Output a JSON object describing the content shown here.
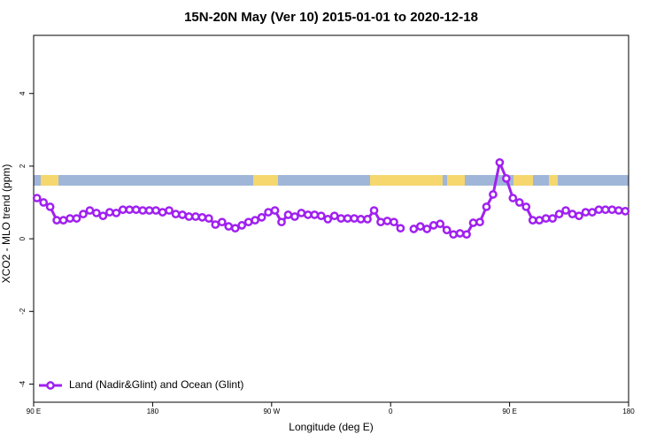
{
  "chart_data": {
    "type": "line",
    "title": "15N-20N May (Ver 10)   2015-01-01 to 2020-12-18",
    "x_label": "Longitude (deg E)",
    "y_label": "XCO2 - MLO trend (ppm)",
    "xlim": [
      90,
      540
    ],
    "xticks": [
      {
        "value": 90,
        "label": "90 E"
      },
      180,
      {
        "value": 270,
        "label": "90 W"
      },
      {
        "value": 360,
        "label": "0"
      },
      {
        "value": 450,
        "label": "90 E"
      },
      {
        "value": 540,
        "label": "180"
      }
    ],
    "ylim": [
      -4.5,
      5.6
    ],
    "yticks": [
      -4,
      -2,
      0,
      2,
      4
    ],
    "legend": "lower left",
    "x": [
      92.5,
      97.5,
      102.5,
      107.5,
      112.5,
      117.5,
      122.5,
      127.5,
      132.5,
      137.5,
      142.5,
      147.5,
      152.5,
      157.5,
      162.5,
      167.5,
      172.5,
      177.5,
      182.5,
      187.5,
      192.5,
      197.5,
      202.5,
      207.5,
      212.5,
      217.5,
      222.5,
      227.5,
      232.5,
      237.5,
      242.5,
      247.5,
      252.5,
      257.5,
      262.5,
      267.5,
      272.5,
      277.5,
      282.5,
      287.5,
      292.5,
      297.5,
      302.5,
      307.5,
      312.5,
      317.5,
      322.5,
      327.5,
      332.5,
      337.5,
      342.5,
      347.5,
      352.5,
      357.5,
      362.5,
      367.5,
      372.5,
      377.5,
      382.5,
      387.5,
      392.5,
      397.5,
      402.5,
      407.5,
      412.5,
      417.5,
      422.5,
      427.5,
      432.5,
      437.5,
      442.5,
      447.5,
      452.5,
      457.5,
      462.5,
      467.5,
      472.5,
      477.5,
      482.5,
      487.5,
      492.5,
      497.5,
      502.5,
      507.5,
      512.5,
      517.5,
      522.5,
      527.5,
      532.5,
      537.5
    ],
    "series": [
      {
        "name": "Land (Nadir&Glint) and Ocean (Glint)",
        "color": "#a020f0",
        "values": [
          1.12,
          1.0,
          0.88,
          0.51,
          0.51,
          0.56,
          0.56,
          0.68,
          0.78,
          0.71,
          0.63,
          0.73,
          0.71,
          0.8,
          0.8,
          0.8,
          0.78,
          0.78,
          0.78,
          0.73,
          0.78,
          0.68,
          0.66,
          0.61,
          0.61,
          0.59,
          0.56,
          0.39,
          0.46,
          0.34,
          0.29,
          0.37,
          0.46,
          0.51,
          0.59,
          0.73,
          0.78,
          0.46,
          0.66,
          0.61,
          0.71,
          0.66,
          0.66,
          0.63,
          0.54,
          0.63,
          0.56,
          0.56,
          0.56,
          0.54,
          0.54,
          0.78,
          0.46,
          0.49,
          0.46,
          0.29,
          null,
          0.27,
          0.34,
          0.27,
          0.37,
          0.41,
          0.24,
          0.12,
          0.15,
          0.12,
          0.44,
          0.46,
          0.88,
          1.22,
          2.1,
          1.66,
          1.12,
          1.0,
          0.88,
          0.51,
          0.51,
          0.56,
          0.56,
          0.68,
          0.78,
          0.68,
          0.63,
          0.73,
          0.73,
          0.8,
          0.8,
          0.8,
          0.78,
          0.76
        ]
      }
    ]
  }
}
